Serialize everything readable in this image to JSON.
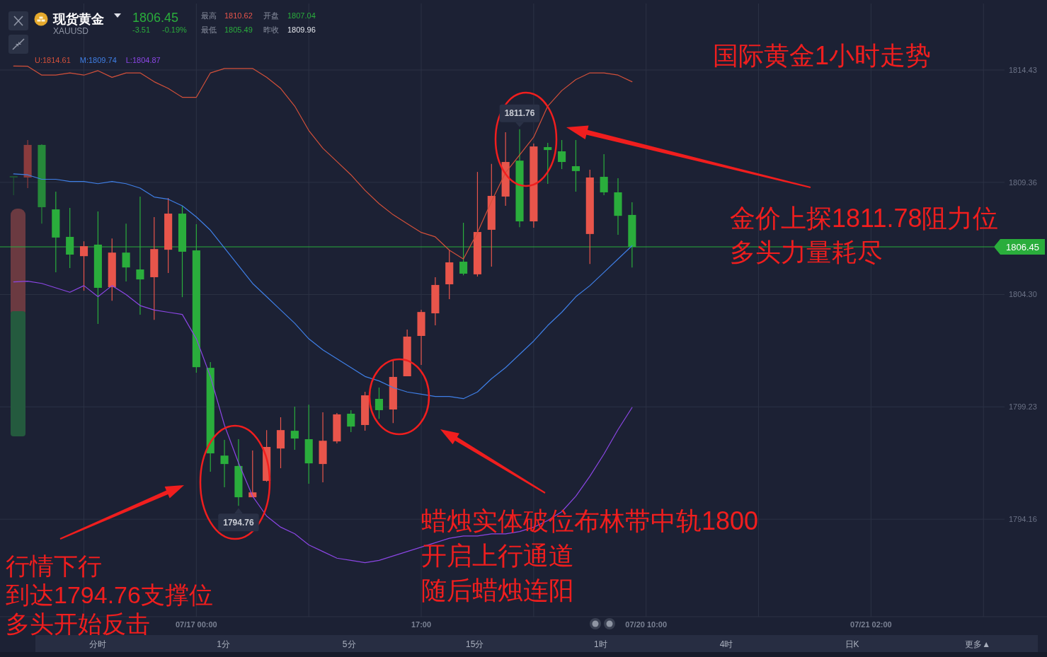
{
  "chart_data": {
    "type": "candlestick",
    "title": "国际黄金1小时走势",
    "categories": [
      null,
      null,
      null,
      null,
      null,
      null,
      null,
      null,
      null,
      null,
      null,
      null,
      null,
      "07/17 00:00",
      null,
      null,
      null,
      null,
      null,
      null,
      null,
      null,
      null,
      null,
      null,
      null,
      null,
      null,
      null,
      "17:00",
      null,
      null,
      null,
      null,
      null,
      null,
      null,
      null,
      null,
      null,
      null,
      null,
      null,
      null,
      null,
      "07/20 10:00",
      null,
      null,
      null,
      null,
      null,
      null,
      null,
      null,
      null,
      null,
      null,
      null,
      null,
      null,
      null,
      "07/21 02:00"
    ],
    "ohlc": [
      [
        1809.64,
        1809.64,
        1808.78,
        1809.58
      ],
      [
        1809.58,
        1811.27,
        1809.1,
        1811.05
      ],
      [
        1811.05,
        1811.08,
        1807.5,
        1808.24
      ],
      [
        1808.14,
        1808.94,
        1805.3,
        1806.87
      ],
      [
        1806.9,
        1808.21,
        1805.49,
        1806.1
      ],
      [
        1806.03,
        1806.7,
        1804.47,
        1806.48
      ],
      [
        1806.55,
        1808.05,
        1802.97,
        1804.6
      ],
      [
        1804.63,
        1806.83,
        1804.02,
        1806.19
      ],
      [
        1806.19,
        1807.5,
        1804.89,
        1805.52
      ],
      [
        1805.43,
        1808.72,
        1803.39,
        1804.98
      ],
      [
        1805.08,
        1807.79,
        1803.16,
        1806.35
      ],
      [
        1806.32,
        1808.65,
        1805.27,
        1807.95
      ],
      [
        1807.95,
        1808.3,
        1804.18,
        1806.23
      ],
      [
        1806.29,
        1807.47,
        1800.77,
        1801.02
      ],
      [
        1800.99,
        1801.25,
        1796.3,
        1797.13
      ],
      [
        1797.03,
        1797.74,
        1795.6,
        1796.65
      ],
      [
        1796.56,
        1797.77,
        1794.76,
        1795.15
      ],
      [
        1795.15,
        1797.26,
        1795.15,
        1795.37
      ],
      [
        1795.89,
        1798.18,
        1795.85,
        1797.42
      ],
      [
        1797.35,
        1798.76,
        1796.46,
        1798.18
      ],
      [
        1798.15,
        1799.24,
        1797.29,
        1797.8
      ],
      [
        1797.77,
        1799.33,
        1795.76,
        1796.68
      ],
      [
        1796.65,
        1798.98,
        1795.82,
        1797.7
      ],
      [
        1797.67,
        1798.95,
        1797.58,
        1798.89
      ],
      [
        1798.92,
        1799.08,
        1798.09,
        1798.34
      ],
      [
        1798.41,
        1799.91,
        1798.15,
        1799.75
      ],
      [
        1799.59,
        1800.1,
        1798.69,
        1799.08
      ],
      [
        1799.11,
        1801.31,
        1798.5,
        1800.58
      ],
      [
        1800.61,
        1802.72,
        1800.61,
        1802.4
      ],
      [
        1802.43,
        1803.61,
        1801.12,
        1803.51
      ],
      [
        1803.45,
        1805.08,
        1802.91,
        1804.73
      ],
      [
        1804.76,
        1806.29,
        1804.09,
        1805.75
      ],
      [
        1805.78,
        1807.54,
        1805.17,
        1805.24
      ],
      [
        1805.21,
        1809.83,
        1805.11,
        1807.12
      ],
      [
        1807.22,
        1810.19,
        1805.56,
        1808.75
      ],
      [
        1808.72,
        1811.62,
        1808.3,
        1810.28
      ],
      [
        1810.34,
        1811.76,
        1807.34,
        1807.6
      ],
      [
        1807.6,
        1811.11,
        1807.31,
        1810.98
      ],
      [
        1810.95,
        1811.14,
        1809.29,
        1810.82
      ],
      [
        1810.76,
        1811.27,
        1809.96,
        1810.28
      ],
      [
        1810.09,
        1811.27,
        1808.94,
        1809.87
      ],
      [
        1807.03,
        1809.93,
        1805.68,
        1809.58
      ],
      [
        1809.61,
        1810.63,
        1808.78,
        1808.91
      ],
      [
        1808.91,
        1809.55,
        1806.99,
        1807.85
      ],
      [
        1807.89,
        1808.46,
        1805.52,
        1806.45
      ],
      null,
      null,
      null,
      null,
      null,
      null,
      null,
      null,
      null,
      null,
      null,
      null,
      null,
      null,
      null,
      null,
      null
    ],
    "colors": [
      "#1f5534",
      "#8a3b3d",
      "#26893a",
      "#2aad3c",
      "#2aad3c",
      "#e8554b",
      "#2aad3c",
      "#e8554b",
      "#2aad3c",
      "#2aad3c",
      "#e8554b",
      "#e8554b",
      "#2aad3c",
      "#2aad3c",
      "#2aad3c",
      "#2aad3c",
      "#2aad3c",
      "#e8554b",
      "#e8554b",
      "#e8554b",
      "#2aad3c",
      "#2aad3c",
      "#e8554b",
      "#e8554b",
      "#2aad3c",
      "#e8554b",
      "#2aad3c",
      "#e8554b",
      "#e8554b",
      "#e8554b",
      "#e8554b",
      "#e8554b",
      "#2aad3c",
      "#e8554b",
      "#e8554b",
      "#e8554b",
      "#2aad3c",
      "#e8554b",
      "#2aad3c",
      "#2aad3c",
      "#2aad3c",
      "#e8554b",
      "#2aad3c",
      "#2aad3c",
      "#2aad3c",
      null,
      null,
      null,
      null,
      null,
      null,
      null,
      null,
      null,
      null,
      null,
      null,
      null,
      null,
      null,
      null,
      null
    ],
    "series": [
      {
        "name": "U:1814.61",
        "type": "line",
        "color": "#d2503a",
        "values": [
          1814.61,
          1814.6,
          1814.2,
          1814.2,
          1814.3,
          1814.2,
          1814.4,
          1814.1,
          1814.3,
          1814.3,
          1813.9,
          1813.6,
          1813.2,
          1813.2,
          1814.3,
          1814.5,
          1814.5,
          1814.5,
          1814.1,
          1813.6,
          1812.8,
          1811.7,
          1810.9,
          1810.3,
          1809.7,
          1809.0,
          1808.4,
          1807.9,
          1807.5,
          1807.1,
          1806.9,
          1806.3,
          1805.9,
          1807.1,
          1808.5,
          1809.8,
          1810.6,
          1811.4,
          1812.8,
          1813.5,
          1814.0,
          1814.3,
          1814.3,
          1814.2,
          1813.9,
          null,
          null,
          null,
          null,
          null,
          null,
          null,
          null,
          null,
          null,
          null,
          null,
          null,
          null,
          null,
          null,
          null
        ]
      },
      {
        "name": "M:1809.74",
        "type": "line",
        "color": "#3f7fe6",
        "values": [
          1809.74,
          1809.7,
          1809.5,
          1809.5,
          1809.4,
          1809.4,
          1809.3,
          1809.4,
          1809.3,
          1809.1,
          1808.7,
          1808.6,
          1808.3,
          1807.8,
          1807.2,
          1806.4,
          1805.6,
          1804.8,
          1804.2,
          1803.6,
          1803.0,
          1802.3,
          1801.8,
          1801.4,
          1801.0,
          1800.6,
          1800.4,
          1800.1,
          1799.9,
          1799.8,
          1799.7,
          1799.7,
          1799.6,
          1799.9,
          1800.5,
          1801.0,
          1801.6,
          1802.2,
          1802.9,
          1803.5,
          1804.2,
          1804.7,
          1805.3,
          1805.9,
          1806.5,
          null,
          null,
          null,
          null,
          null,
          null,
          null,
          null,
          null,
          null,
          null,
          null,
          null,
          null,
          null,
          null,
          null
        ]
      },
      {
        "name": "L:1804.87",
        "type": "line",
        "color": "#8b46e4",
        "values": [
          1804.87,
          1804.9,
          1804.8,
          1804.6,
          1804.4,
          1804.7,
          1804.2,
          1804.7,
          1804.3,
          1803.8,
          1803.6,
          1803.5,
          1803.4,
          1802.3,
          1800.6,
          1798.4,
          1796.7,
          1795.2,
          1794.3,
          1793.8,
          1793.5,
          1793.0,
          1792.7,
          1792.4,
          1792.3,
          1792.2,
          1792.3,
          1792.5,
          1792.7,
          1792.9,
          1793.1,
          1793.3,
          1793.4,
          1793.4,
          1793.5,
          1793.5,
          1793.6,
          1793.8,
          1794.1,
          1794.5,
          1795.2,
          1796.1,
          1797.1,
          1798.2,
          1799.2,
          null,
          null,
          null,
          null,
          null,
          null,
          null,
          null,
          null,
          null,
          null,
          null,
          null,
          null,
          null,
          null,
          null
        ]
      }
    ],
    "ylim": [
      1789.76,
      1817.43
    ],
    "yticks": [
      1794.16,
      1799.23,
      {
        "value": 1804.3,
        "label": "1804.30"
      },
      1809.36,
      1814.43
    ],
    "grid": true,
    "legend": "top left",
    "line_style": "solid",
    "ref_lines": [
      {
        "axis": "y",
        "value": 1806.45,
        "color": "#2aad3c"
      }
    ],
    "annotations": [
      {
        "text": "1811.76",
        "y": 1811.76
      },
      {
        "text": "1794.76",
        "y": 1794.76
      },
      "1806.45",
      "金价上探1811.78阻力位",
      "多头力量耗尽",
      "蜡烛实体破位布林带中轨1800",
      "开启上行通道",
      "随后蜡烛连阳",
      "行情下行",
      "到达1794.76支撑位",
      "多头开始反击",
      "现货黄金",
      "XAUUSD",
      "1806.45",
      "-3.51",
      "-0.19%",
      "最高",
      "1810.62",
      "开盘",
      "1807.04",
      "最低",
      "1805.49",
      "昨收",
      "1809.96",
      "分时",
      "1分",
      "5分",
      "15分",
      "1时",
      "4时",
      "日K",
      "更多▲"
    ]
  }
}
